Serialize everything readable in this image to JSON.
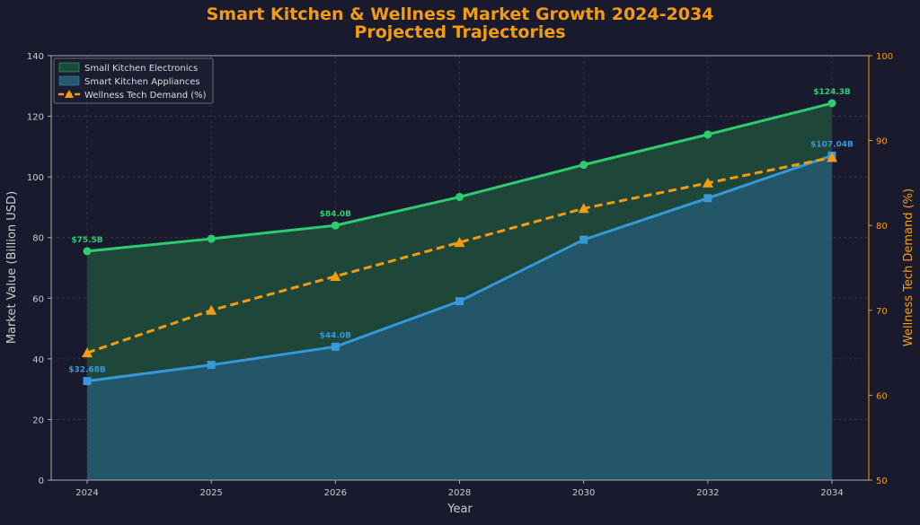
{
  "chart_data": {
    "type": "area",
    "title": "Smart Kitchen & Wellness Market Growth 2024-2034",
    "subtitle": "Projected Trajectories",
    "xlabel": "Year",
    "ylabel": "Market Value (Billion USD)",
    "y2label": "Wellness Tech Demand (%)",
    "x": [
      "2024",
      "2025",
      "2026",
      "2028",
      "2030",
      "2032",
      "2034"
    ],
    "ylim": [
      0,
      140
    ],
    "y_ticks": [
      "0",
      "20",
      "40",
      "60",
      "80",
      "100",
      "120",
      "140"
    ],
    "y2lim": [
      50,
      100
    ],
    "y2_ticks": [
      "50",
      "60",
      "70",
      "80",
      "90",
      "100"
    ],
    "grid": true,
    "legend_position": "top-left",
    "series": [
      {
        "name": "Small Kitchen Electronics",
        "type": "area",
        "axis": "left",
        "color": "#2ecc71",
        "fill": "#1f4a3b",
        "values": [
          75.5,
          79.6,
          84.0,
          93.4,
          104.0,
          114.0,
          124.3
        ],
        "labels": {
          "0": "$75.5B",
          "2": "$84.0B",
          "6": "$124.3B"
        }
      },
      {
        "name": "Smart Kitchen Appliances",
        "type": "area",
        "axis": "left",
        "color": "#3498db",
        "fill": "#245a6c",
        "values": [
          32.68,
          38.0,
          44.0,
          59.0,
          79.3,
          93.0,
          107.04
        ],
        "labels": {
          "0": "$32.68B",
          "2": "$44.0B",
          "6": "$107.04B"
        }
      },
      {
        "name": "Wellness Tech Demand (%)",
        "type": "line",
        "axis": "right",
        "color": "#f39c12",
        "values": [
          65,
          70,
          74,
          78,
          82,
          85,
          88
        ]
      }
    ]
  },
  "colors": {
    "background": "#1a1a2e",
    "title": "#f39c12",
    "axis_text": "#cccccc",
    "grid": "#3a3a55"
  }
}
